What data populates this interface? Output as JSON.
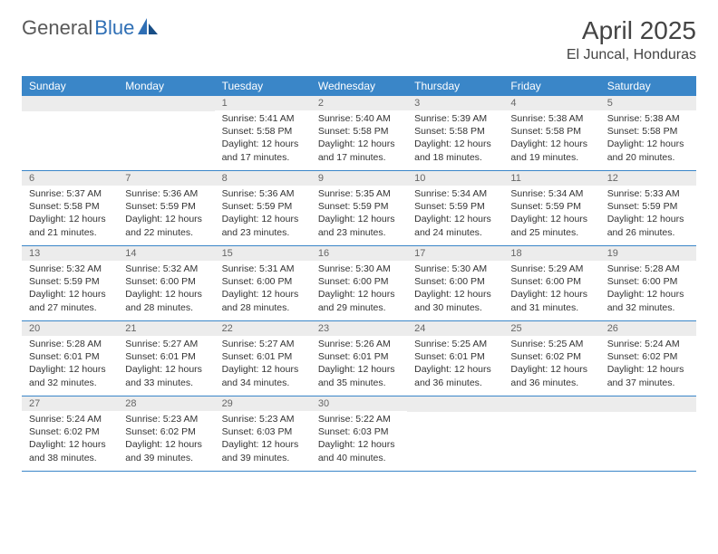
{
  "logo": {
    "part1": "General",
    "part2": "Blue"
  },
  "header": {
    "title": "April 2025",
    "location": "El Juncal, Honduras"
  },
  "colors": {
    "band": "#3a86c8",
    "daynum_bg": "#ececec",
    "text": "#333333",
    "logo_gray": "#595959",
    "logo_blue": "#2f6fb5"
  },
  "weekdays": [
    "Sunday",
    "Monday",
    "Tuesday",
    "Wednesday",
    "Thursday",
    "Friday",
    "Saturday"
  ],
  "weeks": [
    [
      null,
      null,
      {
        "n": "1",
        "sunrise": "5:41 AM",
        "sunset": "5:58 PM",
        "dl": "12 hours and 17 minutes."
      },
      {
        "n": "2",
        "sunrise": "5:40 AM",
        "sunset": "5:58 PM",
        "dl": "12 hours and 17 minutes."
      },
      {
        "n": "3",
        "sunrise": "5:39 AM",
        "sunset": "5:58 PM",
        "dl": "12 hours and 18 minutes."
      },
      {
        "n": "4",
        "sunrise": "5:38 AM",
        "sunset": "5:58 PM",
        "dl": "12 hours and 19 minutes."
      },
      {
        "n": "5",
        "sunrise": "5:38 AM",
        "sunset": "5:58 PM",
        "dl": "12 hours and 20 minutes."
      }
    ],
    [
      {
        "n": "6",
        "sunrise": "5:37 AM",
        "sunset": "5:58 PM",
        "dl": "12 hours and 21 minutes."
      },
      {
        "n": "7",
        "sunrise": "5:36 AM",
        "sunset": "5:59 PM",
        "dl": "12 hours and 22 minutes."
      },
      {
        "n": "8",
        "sunrise": "5:36 AM",
        "sunset": "5:59 PM",
        "dl": "12 hours and 23 minutes."
      },
      {
        "n": "9",
        "sunrise": "5:35 AM",
        "sunset": "5:59 PM",
        "dl": "12 hours and 23 minutes."
      },
      {
        "n": "10",
        "sunrise": "5:34 AM",
        "sunset": "5:59 PM",
        "dl": "12 hours and 24 minutes."
      },
      {
        "n": "11",
        "sunrise": "5:34 AM",
        "sunset": "5:59 PM",
        "dl": "12 hours and 25 minutes."
      },
      {
        "n": "12",
        "sunrise": "5:33 AM",
        "sunset": "5:59 PM",
        "dl": "12 hours and 26 minutes."
      }
    ],
    [
      {
        "n": "13",
        "sunrise": "5:32 AM",
        "sunset": "5:59 PM",
        "dl": "12 hours and 27 minutes."
      },
      {
        "n": "14",
        "sunrise": "5:32 AM",
        "sunset": "6:00 PM",
        "dl": "12 hours and 28 minutes."
      },
      {
        "n": "15",
        "sunrise": "5:31 AM",
        "sunset": "6:00 PM",
        "dl": "12 hours and 28 minutes."
      },
      {
        "n": "16",
        "sunrise": "5:30 AM",
        "sunset": "6:00 PM",
        "dl": "12 hours and 29 minutes."
      },
      {
        "n": "17",
        "sunrise": "5:30 AM",
        "sunset": "6:00 PM",
        "dl": "12 hours and 30 minutes."
      },
      {
        "n": "18",
        "sunrise": "5:29 AM",
        "sunset": "6:00 PM",
        "dl": "12 hours and 31 minutes."
      },
      {
        "n": "19",
        "sunrise": "5:28 AM",
        "sunset": "6:00 PM",
        "dl": "12 hours and 32 minutes."
      }
    ],
    [
      {
        "n": "20",
        "sunrise": "5:28 AM",
        "sunset": "6:01 PM",
        "dl": "12 hours and 32 minutes."
      },
      {
        "n": "21",
        "sunrise": "5:27 AM",
        "sunset": "6:01 PM",
        "dl": "12 hours and 33 minutes."
      },
      {
        "n": "22",
        "sunrise": "5:27 AM",
        "sunset": "6:01 PM",
        "dl": "12 hours and 34 minutes."
      },
      {
        "n": "23",
        "sunrise": "5:26 AM",
        "sunset": "6:01 PM",
        "dl": "12 hours and 35 minutes."
      },
      {
        "n": "24",
        "sunrise": "5:25 AM",
        "sunset": "6:01 PM",
        "dl": "12 hours and 36 minutes."
      },
      {
        "n": "25",
        "sunrise": "5:25 AM",
        "sunset": "6:02 PM",
        "dl": "12 hours and 36 minutes."
      },
      {
        "n": "26",
        "sunrise": "5:24 AM",
        "sunset": "6:02 PM",
        "dl": "12 hours and 37 minutes."
      }
    ],
    [
      {
        "n": "27",
        "sunrise": "5:24 AM",
        "sunset": "6:02 PM",
        "dl": "12 hours and 38 minutes."
      },
      {
        "n": "28",
        "sunrise": "5:23 AM",
        "sunset": "6:02 PM",
        "dl": "12 hours and 39 minutes."
      },
      {
        "n": "29",
        "sunrise": "5:23 AM",
        "sunset": "6:03 PM",
        "dl": "12 hours and 39 minutes."
      },
      {
        "n": "30",
        "sunrise": "5:22 AM",
        "sunset": "6:03 PM",
        "dl": "12 hours and 40 minutes."
      },
      null,
      null,
      null
    ]
  ],
  "labels": {
    "sunrise": "Sunrise: ",
    "sunset": "Sunset: ",
    "daylight": "Daylight: "
  }
}
